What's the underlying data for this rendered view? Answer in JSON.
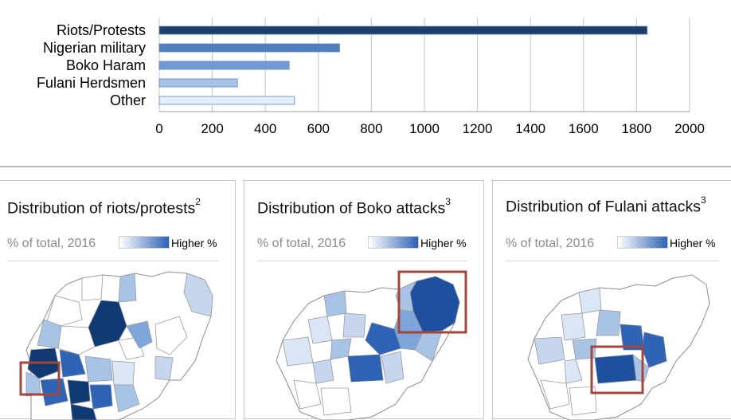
{
  "chart_data": {
    "type": "bar",
    "orientation": "horizontal",
    "categories": [
      "Riots/Protests",
      "Nigerian military",
      "Boko Haram",
      "Fulani Herdsmen",
      "Other"
    ],
    "values": [
      1840,
      680,
      490,
      295,
      510
    ],
    "xlim": [
      0,
      2000
    ],
    "xticks": [
      0,
      200,
      400,
      600,
      800,
      1000,
      1200,
      1400,
      1600,
      1800,
      2000
    ],
    "grid": true,
    "bar_colors": [
      "#1f3f69",
      "#4f7fbf",
      "#6f9ad6",
      "#a8c3e8",
      "#e4eefb"
    ],
    "bar_edge": "#5b84c0"
  },
  "panels": [
    {
      "title": "Distribution of riots/protests",
      "sup": "2",
      "subtitle": "% of total, 2016",
      "legend": "Higher %"
    },
    {
      "title": "Distribution of Boko attacks",
      "sup": "3",
      "subtitle": "% of total, 2016",
      "legend": "Higher %"
    },
    {
      "title": "Distribution of Fulani attacks",
      "sup": "3",
      "subtitle": "% of total, 2016",
      "legend": "Higher %"
    }
  ],
  "colors": {
    "dark": "#123a72",
    "mid": "#2f63b5",
    "light": "#a9c3e6",
    "pale": "#dbe6f5",
    "highlight_box": "#a0473f"
  }
}
